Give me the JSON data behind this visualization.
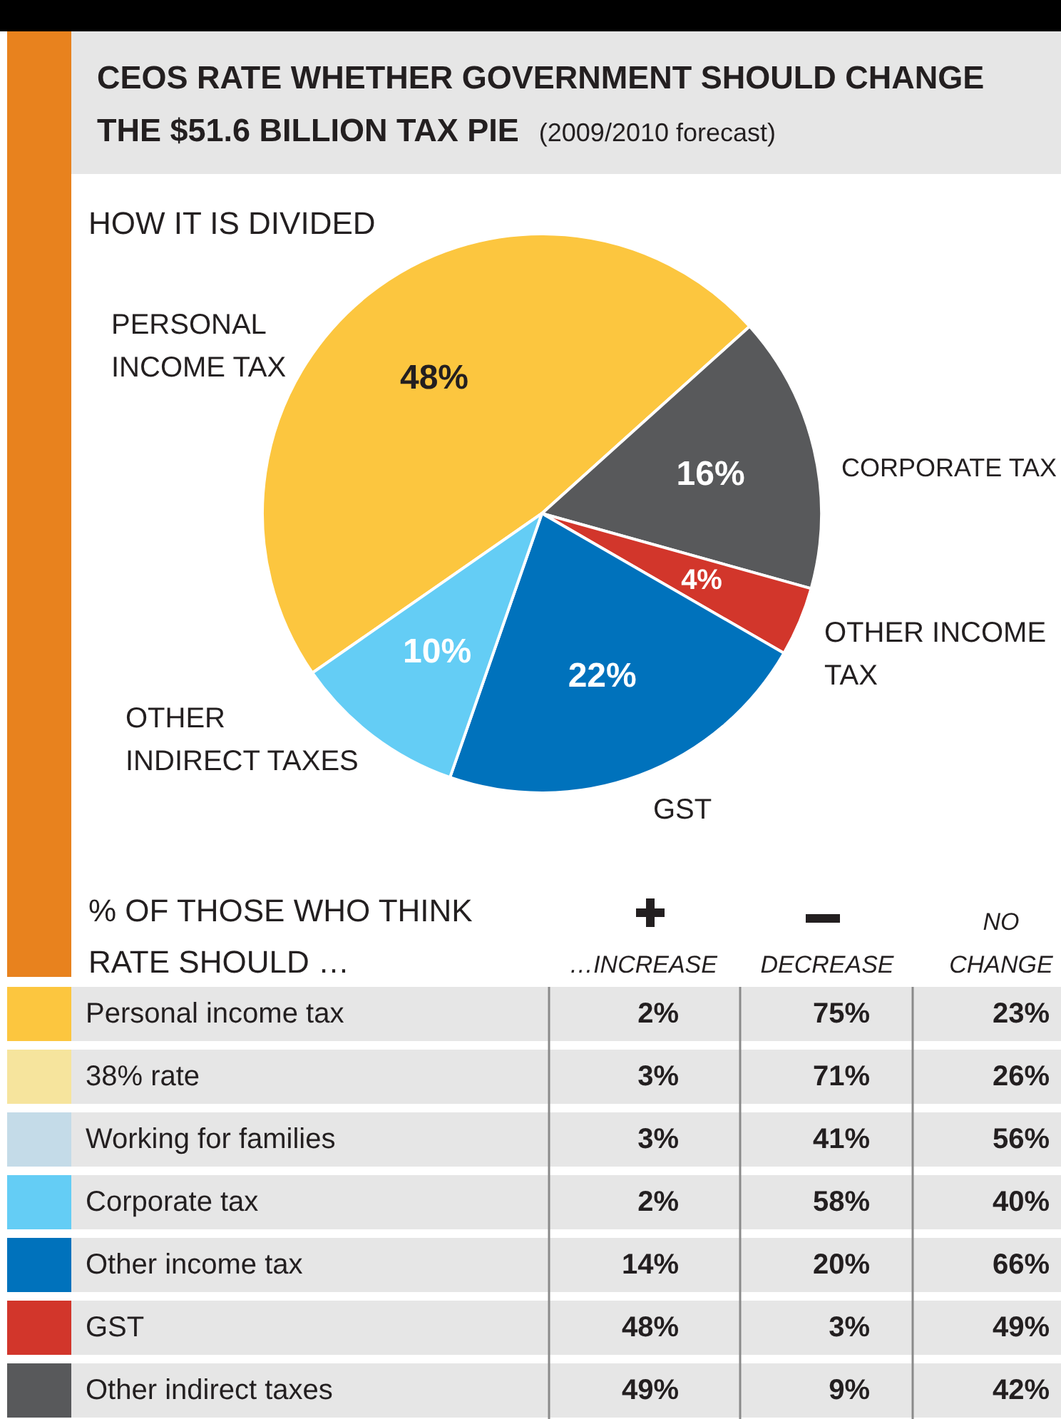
{
  "chart_data": [
    {
      "type": "pie",
      "title": "CEOS RATE WHETHER GOVERNMENT SHOULD CHANGE THE $51.6 BILLION TAX PIE",
      "subtitle": "(2009/2010 forecast)",
      "annotations": [
        "HOW IT IS DIVIDED"
      ],
      "categories": [
        "PERSONAL INCOME TAX",
        "CORPORATE TAX",
        "OTHER INCOME TAX",
        "GST",
        "OTHER INDIRECT TAXES"
      ],
      "values": [
        48,
        16,
        4,
        22,
        10
      ],
      "value_labels": [
        "48%",
        "16%",
        "4%",
        "22%",
        "10%"
      ],
      "colors": [
        "#fcc63f",
        "#58595b",
        "#d2362b",
        "#0072bc",
        "#64cdf5"
      ]
    },
    {
      "type": "other",
      "title": "% OF THOSE WHO THINK RATE SHOULD …",
      "categories": [
        "…INCREASE",
        "DECREASE",
        "NO CHANGE"
      ],
      "y_categories": [
        "Personal income tax",
        "38% rate",
        "Working for families",
        "Corporate tax",
        "Other income tax",
        "GST",
        "Other indirect taxes"
      ],
      "colors": [
        "#fcc63f",
        "#f6e49d",
        "#c4dbe8",
        "#64cdf5",
        "#0072bc",
        "#d2362b",
        "#58595b"
      ],
      "cell_labels": [
        [
          "2%",
          "75%",
          "23%"
        ],
        [
          "3%",
          "71%",
          "26%"
        ],
        [
          "3%",
          "41%",
          "56%"
        ],
        [
          "2%",
          "58%",
          "40%"
        ],
        [
          "14%",
          "20%",
          "66%"
        ],
        [
          "48%",
          "3%",
          "49%"
        ],
        [
          "49%",
          "9%",
          "42%"
        ]
      ]
    }
  ]
}
